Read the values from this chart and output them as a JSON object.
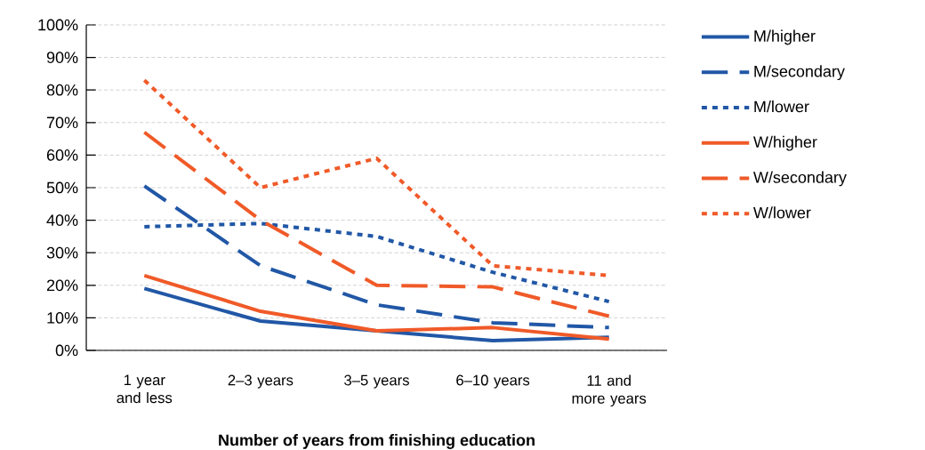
{
  "chart_data": {
    "type": "line",
    "xlabel": "Number of years from finishing education",
    "categories": [
      "1 year and less",
      "2–3 years",
      "3–5 years",
      "6–10 years",
      "11 and more years"
    ],
    "ylim": [
      0,
      100
    ],
    "yticks": [
      {
        "value": 0,
        "label": "0%"
      },
      {
        "value": 10,
        "label": "10%"
      },
      {
        "value": 20,
        "label": "20%"
      },
      {
        "value": 30,
        "label": "30%"
      },
      {
        "value": 40,
        "label": "40%"
      },
      {
        "value": 50,
        "label": "50%"
      },
      {
        "value": 60,
        "label": "60%"
      },
      {
        "value": 70,
        "label": "70%"
      },
      {
        "value": 80,
        "label": "80%"
      },
      {
        "value": 90,
        "label": "90%"
      },
      {
        "value": 100,
        "label": "100%"
      }
    ],
    "grid": "y",
    "legend": "right",
    "marker": "none",
    "series": [
      {
        "name": "M/higher",
        "color": "#2157a6",
        "line_style": "solid",
        "values": [
          19,
          9,
          6,
          3,
          4
        ]
      },
      {
        "name": "M/secondary",
        "color": "#2157a6",
        "line_style": "dashed",
        "values": [
          50.5,
          26,
          14,
          8.5,
          7
        ]
      },
      {
        "name": "M/lower",
        "color": "#2157a6",
        "line_style": "dotted",
        "values": [
          38,
          39,
          35,
          24,
          15
        ]
      },
      {
        "name": "W/higher",
        "color": "#f05a28",
        "line_style": "solid",
        "values": [
          23,
          12,
          6,
          7,
          3.5
        ]
      },
      {
        "name": "W/secondary",
        "color": "#f05a28",
        "line_style": "dashed",
        "values": [
          67,
          40,
          20,
          19.5,
          10.5
        ]
      },
      {
        "name": "W/lower",
        "color": "#f05a28",
        "line_style": "dotted",
        "values": [
          83,
          50,
          59,
          26,
          23
        ]
      }
    ]
  }
}
